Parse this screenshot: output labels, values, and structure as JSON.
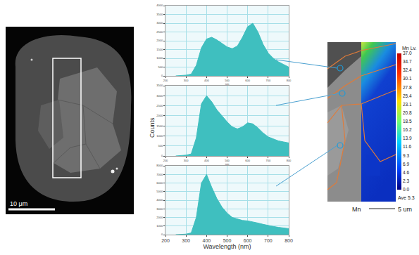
{
  "chart_data": [
    {
      "type": "area",
      "x_label": "nm",
      "color": "#3fbfbf",
      "grid": true,
      "x": [
        250,
        275,
        300,
        325,
        350,
        375,
        400,
        425,
        450,
        475,
        500,
        525,
        550,
        575,
        600,
        625,
        650,
        675,
        700,
        725,
        750,
        775,
        800
      ],
      "values": [
        0,
        20,
        40,
        100,
        600,
        1600,
        2100,
        2200,
        2050,
        1850,
        1650,
        1550,
        1700,
        2200,
        2800,
        3000,
        2500,
        1800,
        1300,
        1000,
        800,
        650,
        500
      ],
      "xlim": [
        200,
        800
      ],
      "xticks": [
        200,
        300,
        400,
        500,
        600,
        700,
        800
      ],
      "ylim": [
        0,
        4000
      ],
      "yticks": [
        0,
        500,
        1000,
        1500,
        2000,
        2500,
        3000,
        3500,
        4000
      ]
    },
    {
      "type": "area",
      "x_label": "nm",
      "color": "#3fbfbf",
      "grid": true,
      "x": [
        250,
        275,
        300,
        325,
        350,
        375,
        400,
        425,
        450,
        475,
        500,
        525,
        550,
        575,
        600,
        625,
        650,
        675,
        700,
        725,
        750,
        775,
        800
      ],
      "values": [
        0,
        20,
        40,
        100,
        900,
        2600,
        3000,
        2700,
        2300,
        2000,
        1700,
        1450,
        1350,
        1450,
        1650,
        1600,
        1400,
        1150,
        950,
        850,
        750,
        700,
        650
      ],
      "xlim": [
        200,
        800
      ],
      "xticks": [
        200,
        300,
        400,
        500,
        600,
        700,
        800
      ],
      "ylim": [
        0,
        3500
      ],
      "yticks": [
        0,
        500,
        1000,
        1500,
        2000,
        2500,
        3000,
        3500
      ]
    },
    {
      "type": "area",
      "x_label": "Wavelength (nm)",
      "color": "#3fbfbf",
      "grid": true,
      "x": [
        250,
        275,
        300,
        325,
        350,
        375,
        400,
        425,
        450,
        475,
        500,
        525,
        550,
        575,
        600,
        625,
        650,
        675,
        700,
        725,
        750,
        775,
        800
      ],
      "values": [
        0,
        30,
        60,
        200,
        2000,
        6000,
        7000,
        5500,
        4200,
        3200,
        2500,
        2000,
        1800,
        1650,
        1600,
        1500,
        1350,
        1200,
        1050,
        950,
        850,
        800,
        700
      ],
      "xlim": [
        200,
        800
      ],
      "xticks": [
        200,
        300,
        400,
        500,
        600,
        700,
        800
      ],
      "ylim": [
        0,
        8000
      ],
      "yticks": [
        0,
        1000,
        2000,
        3000,
        4000,
        5000,
        6000,
        7000,
        8000
      ]
    }
  ],
  "figure": {
    "y_label": "Counts"
  },
  "micrograph": {
    "scale_bar": "10 μm"
  },
  "mn_map": {
    "title": "Mn Lv.",
    "element": "Mn",
    "scale_bar": "5 um",
    "average": "Ave 5.3",
    "colorbar": {
      "range": [
        0,
        37
      ],
      "ticks": [
        {
          "value": 37,
          "label": "37.0"
        },
        {
          "value": 34.7,
          "label": "34.7"
        },
        {
          "value": 32.4,
          "label": "32.4"
        },
        {
          "value": 30.1,
          "label": "30.1"
        },
        {
          "value": 27.8,
          "label": "27.8"
        },
        {
          "value": 25.4,
          "label": "25.4"
        },
        {
          "value": 23.1,
          "label": "23.1"
        },
        {
          "value": 20.8,
          "label": "20.8"
        },
        {
          "value": 18.5,
          "label": "18.5"
        },
        {
          "value": 16.2,
          "label": "16.2"
        },
        {
          "value": 13.9,
          "label": "13.9"
        },
        {
          "value": 11.6,
          "label": "11.6"
        },
        {
          "value": 9.3,
          "label": "9.3"
        },
        {
          "value": 6.9,
          "label": "6.9"
        },
        {
          "value": 4.6,
          "label": "4.6"
        },
        {
          "value": 2.3,
          "label": "2.3"
        },
        {
          "value": 0,
          "label": "0.0"
        }
      ]
    }
  }
}
